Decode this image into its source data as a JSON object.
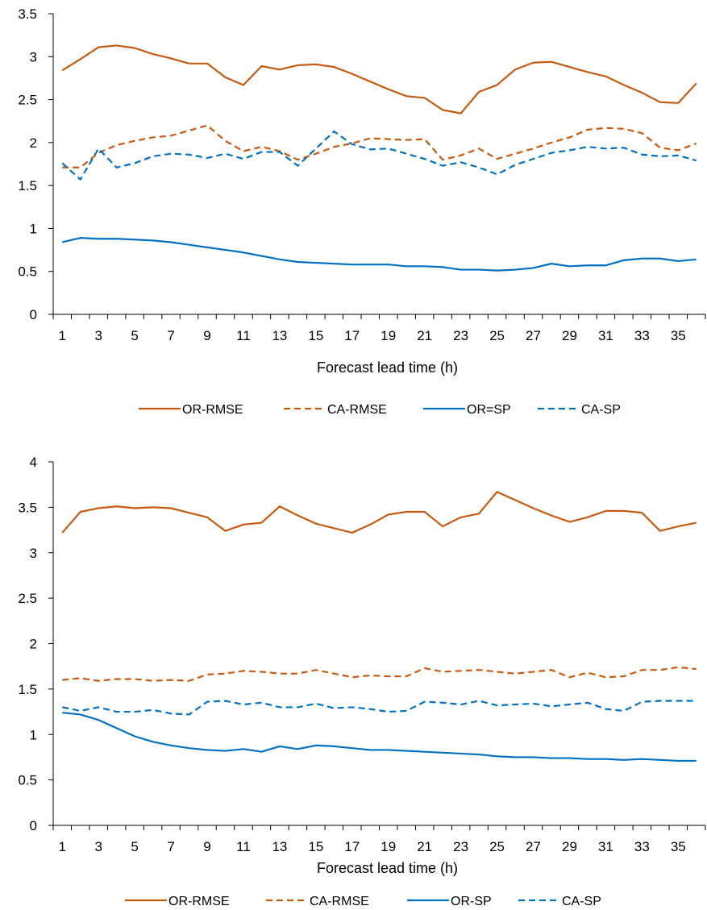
{
  "chart_data": [
    {
      "type": "line",
      "xlabel": "Forecast lead time (h)",
      "ylabel": "",
      "title": "",
      "ylim": [
        0,
        3.5
      ],
      "yticks": [
        "0",
        "0.5",
        "1",
        "1.5",
        "2",
        "2.5",
        "3",
        "3.5"
      ],
      "xticks": [
        "1",
        "3",
        "5",
        "7",
        "9",
        "11",
        "13",
        "15",
        "17",
        "19",
        "21",
        "23",
        "25",
        "27",
        "29",
        "31",
        "33",
        "35"
      ],
      "x": [
        1,
        2,
        3,
        4,
        5,
        6,
        7,
        8,
        9,
        10,
        11,
        12,
        13,
        14,
        15,
        16,
        17,
        18,
        19,
        20,
        21,
        22,
        23,
        24,
        25,
        26,
        27,
        28,
        29,
        30,
        31,
        32,
        33,
        34,
        35,
        36
      ],
      "legend_position": "bottom",
      "series": [
        {
          "name": "OR-RMSE",
          "color": "#C55A11",
          "dash": "solid",
          "values": [
            2.84,
            2.97,
            3.11,
            3.13,
            3.1,
            3.03,
            2.98,
            2.92,
            2.92,
            2.76,
            2.67,
            2.89,
            2.85,
            2.9,
            2.91,
            2.88,
            2.8,
            2.71,
            2.62,
            2.54,
            2.52,
            2.38,
            2.34,
            2.59,
            2.67,
            2.85,
            2.93,
            2.94,
            2.88,
            2.82,
            2.77,
            2.67,
            2.58,
            2.47,
            2.46,
            2.69
          ]
        },
        {
          "name": "CA-RMSE",
          "color": "#C55A11",
          "dash": "dashed",
          "values": [
            1.71,
            1.71,
            1.88,
            1.97,
            2.02,
            2.06,
            2.08,
            2.14,
            2.2,
            2.02,
            1.9,
            1.95,
            1.9,
            1.8,
            1.87,
            1.95,
            1.99,
            2.05,
            2.04,
            2.03,
            2.04,
            1.8,
            1.85,
            1.93,
            1.81,
            1.87,
            1.93,
            2.0,
            2.06,
            2.15,
            2.17,
            2.16,
            2.11,
            1.94,
            1.91,
            1.99
          ]
        },
        {
          "name": "OR=SP",
          "color": "#0070C0",
          "dash": "solid",
          "values": [
            0.84,
            0.89,
            0.88,
            0.88,
            0.87,
            0.86,
            0.84,
            0.81,
            0.78,
            0.75,
            0.72,
            0.68,
            0.64,
            0.61,
            0.6,
            0.59,
            0.58,
            0.58,
            0.58,
            0.56,
            0.56,
            0.55,
            0.52,
            0.52,
            0.51,
            0.52,
            0.54,
            0.59,
            0.56,
            0.57,
            0.57,
            0.63,
            0.65,
            0.65,
            0.62,
            0.64
          ]
        },
        {
          "name": "CA-SP",
          "color": "#0070C0",
          "dash": "dashed",
          "values": [
            1.76,
            1.57,
            1.93,
            1.71,
            1.76,
            1.84,
            1.87,
            1.86,
            1.82,
            1.87,
            1.81,
            1.89,
            1.89,
            1.73,
            1.93,
            2.13,
            1.98,
            1.92,
            1.93,
            1.87,
            1.81,
            1.73,
            1.77,
            1.71,
            1.63,
            1.74,
            1.81,
            1.88,
            1.91,
            1.95,
            1.93,
            1.94,
            1.86,
            1.84,
            1.85,
            1.79
          ]
        }
      ]
    },
    {
      "type": "line",
      "xlabel": "Forecast lead time (h)",
      "ylabel": "",
      "title": "",
      "ylim": [
        0,
        4
      ],
      "yticks": [
        "0",
        "0.5",
        "1",
        "1.5",
        "2",
        "2.5",
        "3",
        "3.5",
        "4"
      ],
      "xticks": [
        "1",
        "3",
        "5",
        "7",
        "9",
        "11",
        "13",
        "15",
        "17",
        "19",
        "21",
        "23",
        "25",
        "27",
        "29",
        "31",
        "33",
        "35"
      ],
      "x": [
        1,
        2,
        3,
        4,
        5,
        6,
        7,
        8,
        9,
        10,
        11,
        12,
        13,
        14,
        15,
        16,
        17,
        18,
        19,
        20,
        21,
        22,
        23,
        24,
        25,
        26,
        27,
        28,
        29,
        30,
        31,
        32,
        33,
        34,
        35,
        36
      ],
      "legend_position": "bottom",
      "series": [
        {
          "name": "OR-RMSE",
          "color": "#C55A11",
          "dash": "solid",
          "values": [
            3.22,
            3.45,
            3.49,
            3.51,
            3.49,
            3.5,
            3.49,
            3.44,
            3.39,
            3.24,
            3.31,
            3.33,
            3.51,
            3.41,
            3.32,
            3.27,
            3.22,
            3.31,
            3.42,
            3.45,
            3.45,
            3.29,
            3.39,
            3.43,
            3.67,
            3.58,
            3.49,
            3.41,
            3.34,
            3.39,
            3.46,
            3.46,
            3.44,
            3.24,
            3.29,
            3.33
          ]
        },
        {
          "name": "CA-RMSE",
          "color": "#C55A11",
          "dash": "dashed",
          "values": [
            1.6,
            1.62,
            1.59,
            1.61,
            1.61,
            1.59,
            1.6,
            1.59,
            1.66,
            1.67,
            1.7,
            1.69,
            1.67,
            1.67,
            1.71,
            1.67,
            1.63,
            1.65,
            1.64,
            1.64,
            1.73,
            1.69,
            1.7,
            1.71,
            1.69,
            1.67,
            1.69,
            1.71,
            1.63,
            1.68,
            1.63,
            1.64,
            1.71,
            1.71,
            1.74,
            1.72
          ]
        },
        {
          "name": "OR-SP",
          "color": "#0070C0",
          "dash": "solid",
          "values": [
            1.24,
            1.22,
            1.16,
            1.07,
            0.98,
            0.92,
            0.88,
            0.85,
            0.83,
            0.82,
            0.84,
            0.81,
            0.87,
            0.84,
            0.88,
            0.87,
            0.85,
            0.83,
            0.83,
            0.82,
            0.81,
            0.8,
            0.79,
            0.78,
            0.76,
            0.75,
            0.75,
            0.74,
            0.74,
            0.73,
            0.73,
            0.72,
            0.73,
            0.72,
            0.71,
            0.71
          ]
        },
        {
          "name": "CA-SP",
          "color": "#0070C0",
          "dash": "dashed",
          "values": [
            1.3,
            1.26,
            1.3,
            1.25,
            1.25,
            1.27,
            1.23,
            1.22,
            1.36,
            1.37,
            1.33,
            1.35,
            1.3,
            1.3,
            1.34,
            1.29,
            1.3,
            1.28,
            1.25,
            1.26,
            1.36,
            1.35,
            1.33,
            1.37,
            1.32,
            1.33,
            1.34,
            1.31,
            1.33,
            1.35,
            1.28,
            1.26,
            1.36,
            1.37,
            1.37,
            1.37
          ]
        }
      ]
    }
  ]
}
